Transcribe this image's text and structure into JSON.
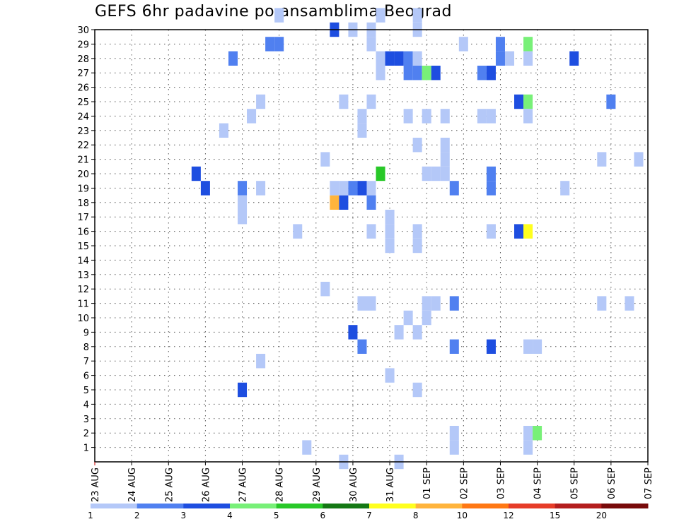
{
  "chart_data": {
    "type": "heatmap",
    "title": "GEFS 6hr padavine po ansamblima Beograd",
    "xlabel": "",
    "ylabel": "",
    "x_tick_labels": [
      "23 AUG",
      "24 AUG",
      "25 AUG",
      "26 AUG",
      "27 AUG",
      "28 AUG",
      "29 AUG",
      "30 AUG",
      "31 AUG",
      "01 SEP",
      "02 SEP",
      "03 SEP",
      "04 SEP",
      "05 SEP",
      "06 SEP",
      "07 SEP"
    ],
    "y_tick_labels": [
      "1",
      "2",
      "3",
      "4",
      "5",
      "6",
      "7",
      "8",
      "9",
      "10",
      "11",
      "12",
      "13",
      "14",
      "15",
      "16",
      "17",
      "18",
      "19",
      "20",
      "21",
      "22",
      "23",
      "24",
      "25",
      "26",
      "27",
      "28",
      "29",
      "30"
    ],
    "xlim_days": [
      0,
      15
    ],
    "ylim": [
      0,
      30
    ],
    "grid": true,
    "cell_unit_days": 0.25,
    "legend": {
      "position": "bottom",
      "labels": [
        "1",
        "2",
        "3",
        "4",
        "5",
        "6",
        "7",
        "8",
        "10",
        "12",
        "15",
        "20"
      ],
      "colors": [
        "#b4c8f8",
        "#5080f0",
        "#1e4ee0",
        "#78f078",
        "#28c828",
        "#147814",
        "#ffff1e",
        "#ffb43c",
        "#ff7814",
        "#e63c28",
        "#b41e1e",
        "#780a0a"
      ]
    },
    "cells": [
      [
        4.0,
        5,
        3
      ],
      [
        4.0,
        19,
        2
      ],
      [
        2.75,
        20,
        3
      ],
      [
        3.0,
        19,
        3
      ],
      [
        4.5,
        7,
        1
      ],
      [
        3.75,
        28,
        2
      ],
      [
        3.5,
        23,
        1
      ],
      [
        4.0,
        18,
        1
      ],
      [
        4.5,
        19,
        1
      ],
      [
        4.75,
        29,
        2
      ],
      [
        5.0,
        29,
        2
      ],
      [
        4.0,
        17,
        1
      ],
      [
        4.25,
        24,
        1
      ],
      [
        4.5,
        25,
        1
      ],
      [
        5.0,
        31,
        1
      ],
      [
        5.5,
        16,
        1
      ],
      [
        5.75,
        1,
        1
      ],
      [
        6.25,
        12,
        1
      ],
      [
        6.25,
        21,
        1
      ],
      [
        6.5,
        18,
        8
      ],
      [
        6.75,
        18,
        3
      ],
      [
        6.5,
        19,
        1
      ],
      [
        6.75,
        19,
        1
      ],
      [
        6.5,
        30,
        3
      ],
      [
        6.75,
        25,
        1
      ],
      [
        7.0,
        30,
        1
      ],
      [
        6.75,
        0,
        1
      ],
      [
        7.25,
        8,
        2
      ],
      [
        7.25,
        19,
        3
      ],
      [
        7.25,
        23,
        1
      ],
      [
        7.25,
        11,
        1
      ],
      [
        7.5,
        11,
        1
      ],
      [
        7.5,
        19,
        1
      ],
      [
        7.5,
        25,
        1
      ],
      [
        7.75,
        31,
        1
      ],
      [
        7.5,
        30,
        1
      ],
      [
        7.5,
        29,
        1
      ],
      [
        7.5,
        16,
        1
      ],
      [
        7.5,
        18,
        2
      ],
      [
        7.0,
        9,
        3
      ],
      [
        7.0,
        19,
        2
      ],
      [
        7.25,
        24,
        1
      ],
      [
        7.75,
        20,
        5
      ],
      [
        7.75,
        28,
        1
      ],
      [
        8.25,
        28,
        3
      ],
      [
        8.5,
        28,
        2
      ],
      [
        8.75,
        28,
        1
      ],
      [
        8.5,
        27,
        2
      ],
      [
        8.75,
        27,
        2
      ],
      [
        8.0,
        28,
        3
      ],
      [
        8.5,
        24,
        1
      ],
      [
        8.75,
        22,
        1
      ],
      [
        7.75,
        27,
        1
      ],
      [
        8.0,
        15,
        1
      ],
      [
        8.0,
        16,
        1
      ],
      [
        8.0,
        17,
        1
      ],
      [
        8.0,
        6,
        1
      ],
      [
        8.25,
        0,
        1
      ],
      [
        8.25,
        9,
        1
      ],
      [
        8.5,
        10,
        1
      ],
      [
        8.75,
        9,
        1
      ],
      [
        8.75,
        5,
        1
      ],
      [
        8.75,
        16,
        1
      ],
      [
        8.75,
        15,
        1
      ],
      [
        8.75,
        30,
        1
      ],
      [
        8.75,
        31,
        1
      ],
      [
        9.0,
        27,
        4
      ],
      [
        9.25,
        27,
        3
      ],
      [
        9.0,
        24,
        1
      ],
      [
        9.0,
        20,
        1
      ],
      [
        9.25,
        20,
        1
      ],
      [
        9.0,
        10,
        1
      ],
      [
        9.0,
        11,
        1
      ],
      [
        9.25,
        11,
        1
      ],
      [
        9.5,
        24,
        1
      ],
      [
        9.5,
        22,
        1
      ],
      [
        9.5,
        21,
        1
      ],
      [
        9.5,
        20,
        1
      ],
      [
        9.75,
        19,
        2
      ],
      [
        9.75,
        11,
        2
      ],
      [
        9.75,
        8,
        2
      ],
      [
        9.75,
        1,
        1
      ],
      [
        9.75,
        2,
        1
      ],
      [
        10.0,
        29,
        1
      ],
      [
        10.5,
        24,
        1
      ],
      [
        10.75,
        24,
        1
      ],
      [
        10.5,
        27,
        2
      ],
      [
        10.75,
        27,
        3
      ],
      [
        10.75,
        20,
        2
      ],
      [
        10.75,
        19,
        2
      ],
      [
        10.75,
        16,
        1
      ],
      [
        10.75,
        8,
        3
      ],
      [
        11.0,
        29,
        2
      ],
      [
        11.0,
        28,
        2
      ],
      [
        11.25,
        28,
        1
      ],
      [
        11.5,
        25,
        3
      ],
      [
        11.5,
        16,
        3
      ],
      [
        11.75,
        16,
        7
      ],
      [
        11.75,
        25,
        4
      ],
      [
        11.75,
        29,
        4
      ],
      [
        11.75,
        28,
        1
      ],
      [
        11.75,
        24,
        1
      ],
      [
        11.75,
        8,
        1
      ],
      [
        12.0,
        8,
        1
      ],
      [
        11.75,
        1,
        1
      ],
      [
        11.75,
        2,
        1
      ],
      [
        12.0,
        2,
        4
      ],
      [
        13.0,
        28,
        3
      ],
      [
        12.75,
        19,
        1
      ],
      [
        14.0,
        25,
        2
      ],
      [
        13.75,
        21,
        1
      ],
      [
        13.75,
        11,
        1
      ],
      [
        14.5,
        11,
        1
      ],
      [
        14.75,
        21,
        1
      ]
    ]
  }
}
